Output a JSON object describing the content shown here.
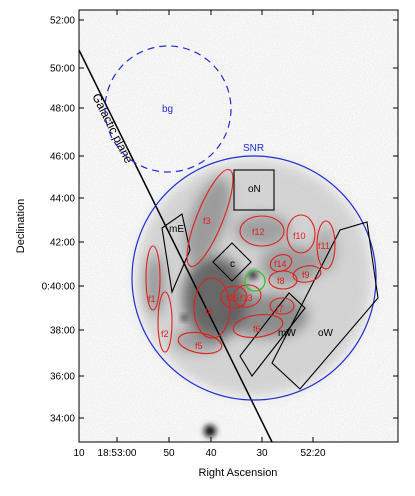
{
  "chart_data": {
    "type": "image",
    "xlabel": "Right Ascension",
    "ylabel": "Declination",
    "x_ticks": [
      "10",
      "18:53:00",
      "50",
      "40",
      "30",
      "52:20"
    ],
    "y_ticks": [
      "52:00",
      "50:00",
      "48:00",
      "46:00",
      "44:00",
      "42:00",
      "0:40:00",
      "38:00",
      "36:00",
      "34:00"
    ],
    "circles": [
      {
        "label": "bg",
        "style": "dashed",
        "color": "#1f2fd0"
      },
      {
        "label": "SNR",
        "style": "solid",
        "color": "#1f2fd0"
      }
    ],
    "galactic_plane_label": "Galactic plane",
    "boxes": [
      "oN",
      "c",
      "mE",
      "mW",
      "oW"
    ],
    "filaments": [
      "f1",
      "f2",
      "f3",
      "f4",
      "f5",
      "f6",
      "f7",
      "f8",
      "f9",
      "f10",
      "f11",
      "f12",
      "f13",
      "f14",
      "f15"
    ],
    "marker_color": "#22cc22",
    "region_color": "#e0201c"
  }
}
